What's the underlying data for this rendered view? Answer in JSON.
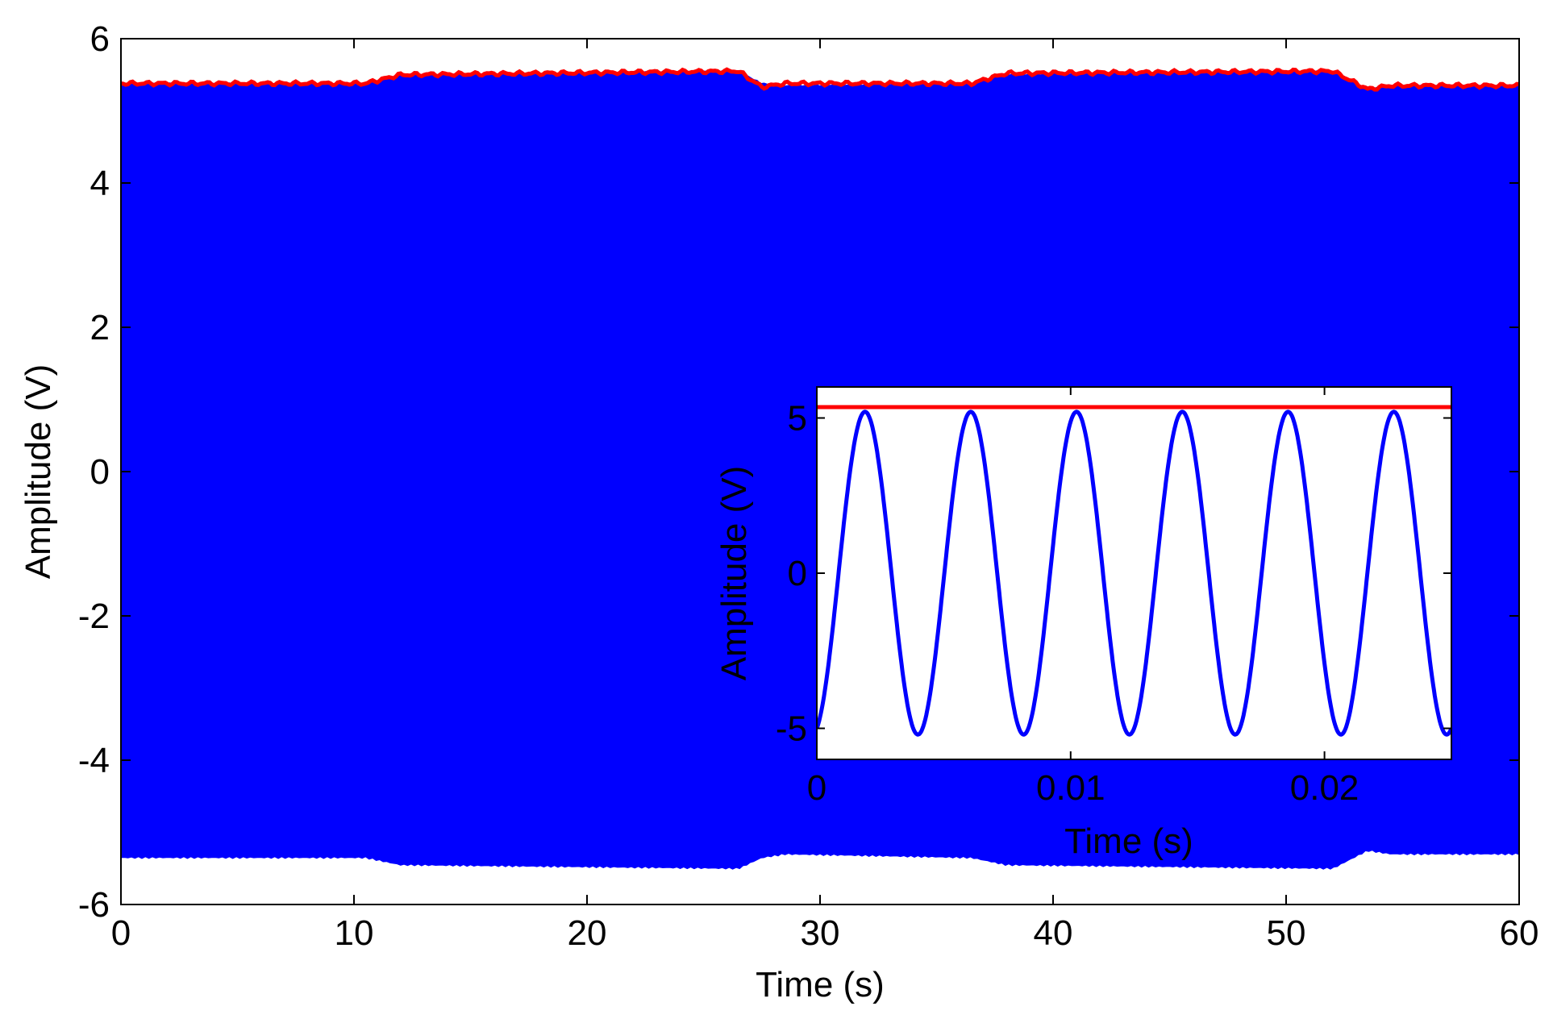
{
  "chart_data": [
    {
      "type": "line",
      "panel": "main",
      "xlabel": "Time (s)",
      "ylabel": "Amplitude (V)",
      "xlim": [
        0,
        60
      ],
      "ylim": [
        -6,
        6
      ],
      "xticks": [
        0,
        10,
        20,
        30,
        40,
        50,
        60
      ],
      "yticks": [
        -6,
        -4,
        -2,
        0,
        2,
        4,
        6
      ],
      "grid": false,
      "series": [
        {
          "color": "#0000ff",
          "style": "dense oscillation filling band",
          "upper_envelope": {
            "x": [
              0,
              10.5,
              12,
              26.5,
              27.5,
              28.5,
              36.5,
              38,
              52,
              53.5,
              54.5,
              60
            ],
            "y": [
              5.38,
              5.38,
              5.5,
              5.55,
              5.38,
              5.35,
              5.38,
              5.5,
              5.55,
              5.3,
              5.35,
              5.35
            ]
          },
          "lower_envelope": {
            "x": [
              0,
              10.5,
              12,
              26.5,
              27.5,
              28.5,
              36.5,
              38,
              52,
              53.5,
              54.5,
              60
            ],
            "y": [
              -5.35,
              -5.35,
              -5.45,
              -5.5,
              -5.35,
              -5.3,
              -5.35,
              -5.45,
              -5.5,
              -5.25,
              -5.3,
              -5.3
            ]
          }
        },
        {
          "color": "#ff0000",
          "style": "envelope line",
          "x": [
            0,
            10.5,
            12,
            26.5,
            27.5,
            28.5,
            36.5,
            38,
            52,
            53.5,
            54.5,
            60
          ],
          "y": [
            5.38,
            5.38,
            5.5,
            5.55,
            5.33,
            5.38,
            5.38,
            5.52,
            5.55,
            5.3,
            5.35,
            5.35
          ]
        }
      ]
    },
    {
      "type": "line",
      "panel": "inset",
      "xlabel": "Time (s)",
      "ylabel": "Amplitude (V)",
      "xlim": [
        0,
        0.025
      ],
      "ylim": [
        -6,
        6
      ],
      "xticks": [
        0,
        0.01,
        0.02
      ],
      "xtick_labels": [
        "0",
        "0.01",
        "0.02"
      ],
      "yticks": [
        -5,
        0,
        5
      ],
      "grid": false,
      "series": [
        {
          "color": "#0000ff",
          "style": "sinusoid",
          "amplitude": 5.2,
          "frequency_hz": 240,
          "start_value": -5.0
        },
        {
          "color": "#ff0000",
          "style": "horizontal line",
          "x": [
            0,
            0.025
          ],
          "y": [
            5.35,
            5.35
          ]
        }
      ]
    }
  ]
}
